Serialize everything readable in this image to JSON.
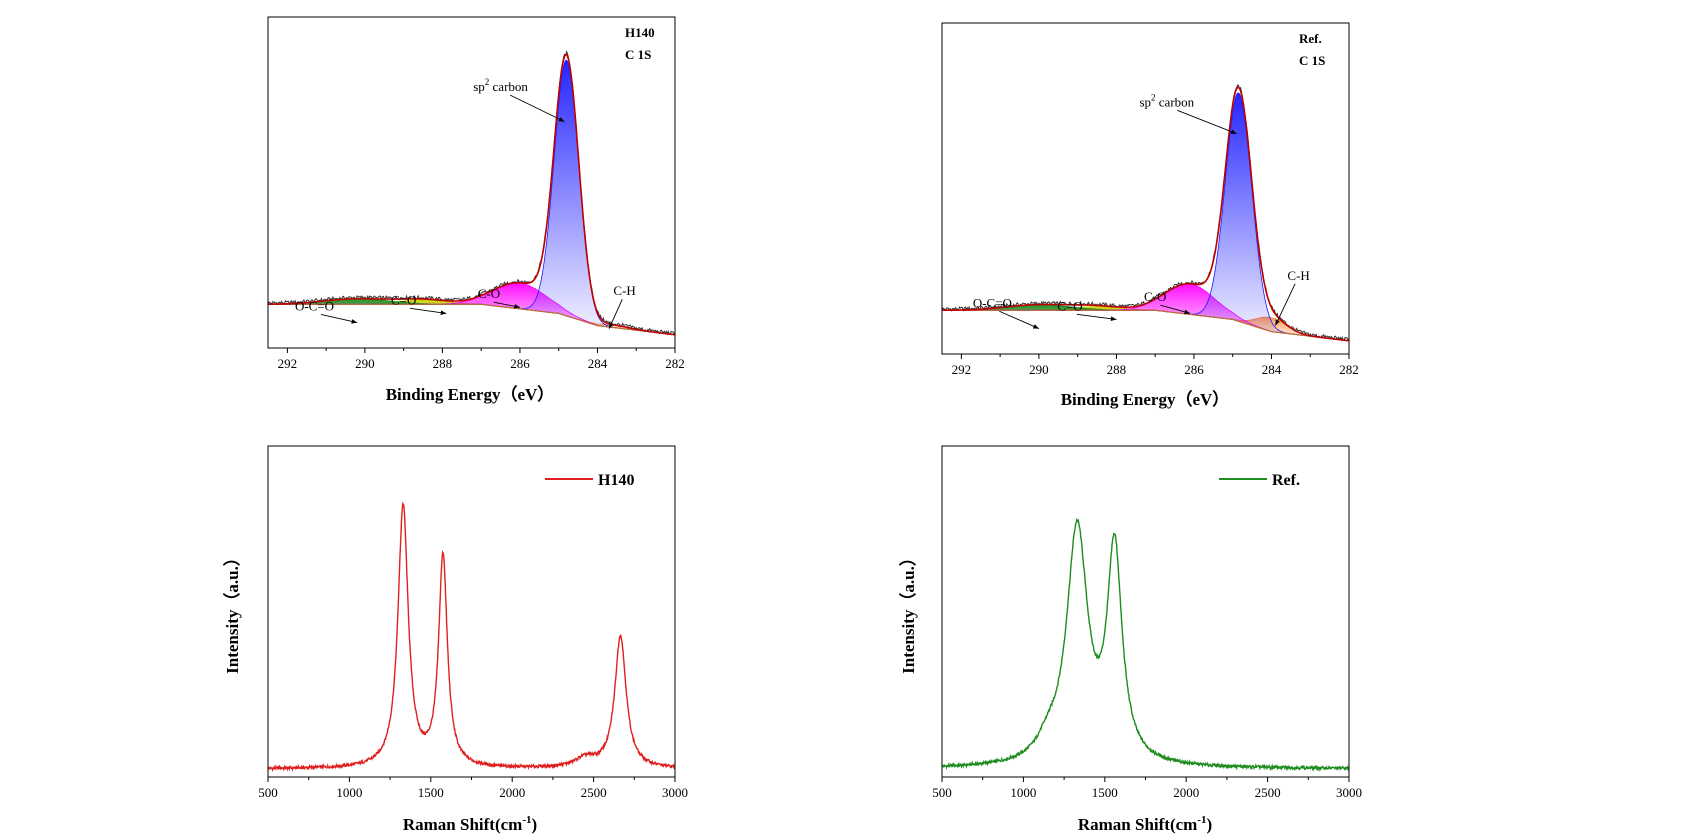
{
  "chart_data": [
    {
      "id": "xps_h140",
      "type": "area",
      "tag_lines": [
        "H140",
        "C 1S"
      ],
      "xlabel": "Binding Energy（eV）",
      "ylabel": "",
      "xlim": [
        292.5,
        282
      ],
      "ylim": [
        0,
        1.0
      ],
      "x_reversed": true,
      "xticks": [
        292,
        290,
        288,
        286,
        284,
        282
      ],
      "background": [
        [
          292.5,
          0.1
        ],
        [
          287,
          0.1
        ],
        [
          286,
          0.085
        ],
        [
          285,
          0.07
        ],
        [
          284,
          0.03
        ],
        [
          282,
          0.0
        ]
      ],
      "components": [
        {
          "name": "sp2 carbon",
          "center": 284.8,
          "height": 0.84,
          "fwhm": 0.75,
          "color": "#1a1aff"
        },
        {
          "name": "C-O",
          "center": 286.0,
          "height": 0.085,
          "fwhm": 1.6,
          "color": "#ff00ff"
        },
        {
          "name": "C=O",
          "center": 288.5,
          "height": 0.015,
          "fwhm": 1.5,
          "color": "#c8d400"
        },
        {
          "name": "O-C=O",
          "center": 290.2,
          "height": 0.018,
          "fwhm": 2.0,
          "color": "#1e8c1e"
        },
        {
          "name": "C-H",
          "center": 283.6,
          "height": 0.008,
          "fwhm": 1.0,
          "color": "#ff7f27"
        }
      ],
      "annotations": [
        {
          "label": "sp",
          "sup": "2",
          "rest": " carbon",
          "x": 286.5,
          "y": 0.8,
          "ax": 284.85,
          "ay": 0.7
        },
        {
          "label": "C-O",
          "x": 286.8,
          "y": 0.12,
          "ax": 286.0,
          "ay": 0.09
        },
        {
          "label": "C=O",
          "x": 289.0,
          "y": 0.1,
          "ax": 287.9,
          "ay": 0.07
        },
        {
          "label": "O-C=O",
          "x": 291.3,
          "y": 0.08,
          "ax": 290.2,
          "ay": 0.04
        },
        {
          "label": "C-H",
          "x": 283.3,
          "y": 0.13,
          "ax": 283.7,
          "ay": 0.02
        }
      ]
    },
    {
      "id": "xps_ref",
      "type": "area",
      "tag_lines": [
        "Ref.",
        "C 1S"
      ],
      "xlabel": "Binding Energy（eV）",
      "ylabel": "",
      "xlim": [
        292.5,
        282
      ],
      "ylim": [
        0,
        1.0
      ],
      "x_reversed": true,
      "xticks": [
        292,
        290,
        288,
        286,
        284,
        282
      ],
      "background": [
        [
          292.5,
          0.1
        ],
        [
          287,
          0.1
        ],
        [
          286,
          0.085
        ],
        [
          285,
          0.07
        ],
        [
          284,
          0.03
        ],
        [
          282,
          0.0
        ]
      ],
      "components": [
        {
          "name": "sp2 carbon",
          "center": 284.85,
          "height": 0.75,
          "fwhm": 0.8,
          "color": "#1a1aff"
        },
        {
          "name": "C-O",
          "center": 286.1,
          "height": 0.1,
          "fwhm": 1.5,
          "color": "#ff00ff"
        },
        {
          "name": "C=O",
          "center": 288.5,
          "height": 0.012,
          "fwhm": 1.5,
          "color": "#c8d400"
        },
        {
          "name": "O-C=O",
          "center": 290.0,
          "height": 0.018,
          "fwhm": 2.0,
          "color": "#1e8c1e"
        },
        {
          "name": "C-H",
          "center": 284.0,
          "height": 0.045,
          "fwhm": 0.9,
          "color": "#ff7f27"
        }
      ],
      "annotations": [
        {
          "label": "sp",
          "sup": "2",
          "rest": " carbon",
          "x": 286.7,
          "y": 0.77,
          "ax": 284.9,
          "ay": 0.68
        },
        {
          "label": "C-O",
          "x": 287.0,
          "y": 0.13,
          "ax": 286.1,
          "ay": 0.09
        },
        {
          "label": "C=O",
          "x": 289.2,
          "y": 0.1,
          "ax": 288.0,
          "ay": 0.07
        },
        {
          "label": "O-C=O",
          "x": 291.2,
          "y": 0.11,
          "ax": 290.0,
          "ay": 0.04
        },
        {
          "label": "C-H",
          "x": 283.3,
          "y": 0.2,
          "ax": 283.9,
          "ay": 0.05
        }
      ]
    },
    {
      "id": "raman_h140",
      "type": "line",
      "xlabel": "Raman Shift(cm",
      "xlabel_sup": "-1",
      "xlabel_end": ")",
      "ylabel": "Intensity（a.u.）",
      "xlim": [
        500,
        3000
      ],
      "ylim": [
        0,
        1.0
      ],
      "xticks": [
        500,
        1000,
        1500,
        2000,
        2500,
        3000
      ],
      "color": "#e02020",
      "series": [
        {
          "name": "H140"
        }
      ],
      "peaks": [
        {
          "center": 1330,
          "height": 0.87,
          "hwhm": 38
        },
        {
          "center": 1575,
          "height": 0.7,
          "hwhm": 32
        },
        {
          "center": 2665,
          "height": 0.44,
          "hwhm": 42
        },
        {
          "center": 2450,
          "height": 0.03,
          "hwhm": 80
        }
      ]
    },
    {
      "id": "raman_ref",
      "type": "line",
      "xlabel": "Raman Shift(cm",
      "xlabel_sup": "-1",
      "xlabel_end": ")",
      "ylabel": "Intensity（a.u.）",
      "xlim": [
        500,
        3000
      ],
      "ylim": [
        0,
        1.0
      ],
      "xticks": [
        500,
        1000,
        1500,
        2000,
        2500,
        3000
      ],
      "color": "#1e8c1e",
      "series": [
        {
          "name": "Ref."
        }
      ],
      "peaks": [
        {
          "center": 1330,
          "height": 0.78,
          "hwhm": 78
        },
        {
          "center": 1560,
          "height": 0.7,
          "hwhm": 55
        },
        {
          "center": 1150,
          "height": 0.05,
          "hwhm": 80
        }
      ]
    }
  ]
}
